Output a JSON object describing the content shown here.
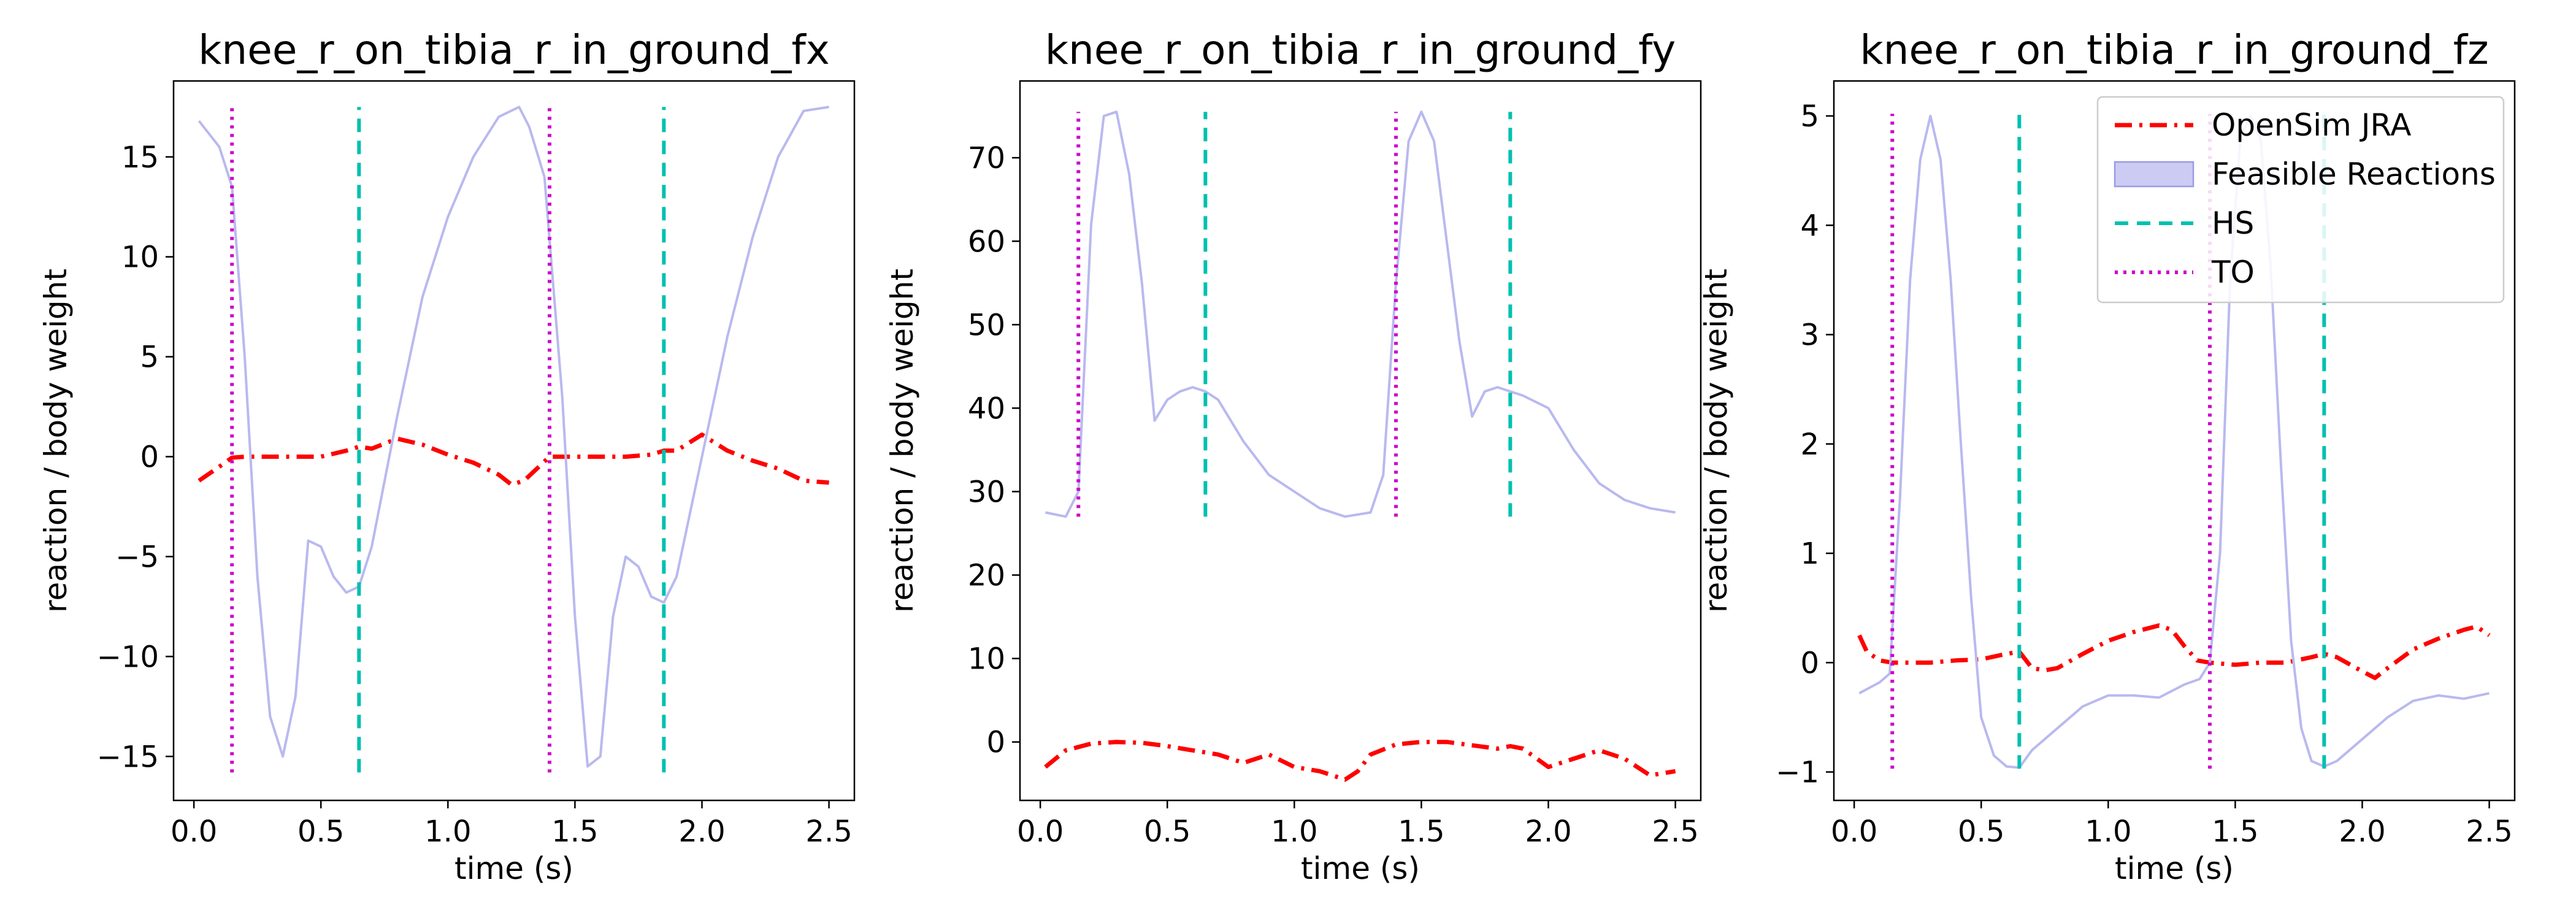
{
  "chart_data": [
    {
      "type": "line",
      "title": "knee_r_on_tibia_r_in_ground_fx",
      "xlabel": "time (s)",
      "ylabel": "reaction / body weight",
      "xlim": [
        -0.08,
        2.6
      ],
      "ylim": [
        -17.2,
        18.8
      ],
      "xticks": [
        0.0,
        0.5,
        1.0,
        1.5,
        2.0,
        2.5
      ],
      "xtick_labels": [
        "0.0",
        "0.5",
        "1.0",
        "1.5",
        "2.0",
        "2.5"
      ],
      "yticks": [
        -15,
        -10,
        -5,
        0,
        5,
        10,
        15
      ],
      "ytick_labels": [
        "−15",
        "−10",
        "−5",
        "0",
        "5",
        "10",
        "15"
      ],
      "series": [
        {
          "name": "OpenSim JRA",
          "style": "dashdot",
          "color": "#ff0000",
          "x": [
            0.02,
            0.1,
            0.15,
            0.2,
            0.3,
            0.4,
            0.5,
            0.6,
            0.65,
            0.7,
            0.8,
            0.9,
            1.0,
            1.1,
            1.2,
            1.25,
            1.3,
            1.4,
            1.5,
            1.6,
            1.7,
            1.8,
            1.85,
            1.9,
            2.0,
            2.1,
            2.2,
            2.3,
            2.4,
            2.5
          ],
          "y": [
            -1.2,
            -0.5,
            -0.05,
            0.0,
            0.0,
            0.0,
            0.0,
            0.3,
            0.5,
            0.4,
            0.9,
            0.6,
            0.1,
            -0.3,
            -0.9,
            -1.4,
            -1.2,
            0.0,
            0.0,
            0.0,
            0.0,
            0.1,
            0.3,
            0.3,
            1.1,
            0.3,
            -0.2,
            -0.6,
            -1.2,
            -1.3
          ]
        },
        {
          "name": "Feasible Reactions",
          "style": "band",
          "color": "#b9b9ef",
          "x": [
            0.02,
            0.1,
            0.15,
            0.2,
            0.25,
            0.3,
            0.35,
            0.4,
            0.45,
            0.5,
            0.55,
            0.6,
            0.65,
            0.7,
            0.8,
            0.9,
            1.0,
            1.1,
            1.2,
            1.28,
            1.32,
            1.38,
            1.45,
            1.5,
            1.55,
            1.6,
            1.65,
            1.7,
            1.75,
            1.8,
            1.85,
            1.9,
            2.0,
            2.1,
            2.2,
            2.3,
            2.4,
            2.5
          ],
          "y": [
            16.8,
            15.5,
            13.5,
            5.0,
            -6.0,
            -13.0,
            -15.0,
            -12.0,
            -4.2,
            -4.5,
            -6.0,
            -6.8,
            -6.5,
            -4.5,
            2.0,
            8.0,
            12.0,
            15.0,
            17.0,
            17.5,
            16.5,
            14.0,
            3.0,
            -8.0,
            -15.5,
            -15.0,
            -8.0,
            -5.0,
            -5.5,
            -7.0,
            -7.3,
            -6.0,
            0.0,
            6.0,
            11.0,
            15.0,
            17.3,
            17.5
          ]
        }
      ],
      "vlines": [
        {
          "name": "TO",
          "x": 0.15,
          "ymin": -15.8,
          "ymax": 17.5,
          "color": "#cc00cc",
          "style": "dotted"
        },
        {
          "name": "HS",
          "x": 0.65,
          "ymin": -15.8,
          "ymax": 17.5,
          "color": "#00c0b0",
          "style": "dashed"
        },
        {
          "name": "TO",
          "x": 1.4,
          "ymin": -15.8,
          "ymax": 17.5,
          "color": "#cc00cc",
          "style": "dotted"
        },
        {
          "name": "HS",
          "x": 1.85,
          "ymin": -15.8,
          "ymax": 17.5,
          "color": "#00c0b0",
          "style": "dashed"
        }
      ],
      "legend": null
    },
    {
      "type": "line",
      "title": "knee_r_on_tibia_r_in_ground_fy",
      "xlabel": "time (s)",
      "ylabel": "reaction / body weight",
      "xlim": [
        -0.08,
        2.6
      ],
      "ylim": [
        -7.0,
        79.2
      ],
      "xticks": [
        0.0,
        0.5,
        1.0,
        1.5,
        2.0,
        2.5
      ],
      "xtick_labels": [
        "0.0",
        "0.5",
        "1.0",
        "1.5",
        "2.0",
        "2.5"
      ],
      "yticks": [
        0,
        10,
        20,
        30,
        40,
        50,
        60,
        70
      ],
      "ytick_labels": [
        "0",
        "10",
        "20",
        "30",
        "40",
        "50",
        "60",
        "70"
      ],
      "series": [
        {
          "name": "OpenSim JRA",
          "style": "dashdot",
          "color": "#ff0000",
          "x": [
            0.02,
            0.1,
            0.2,
            0.3,
            0.4,
            0.5,
            0.6,
            0.7,
            0.8,
            0.9,
            1.0,
            1.1,
            1.2,
            1.25,
            1.3,
            1.4,
            1.5,
            1.6,
            1.7,
            1.8,
            1.85,
            1.9,
            2.0,
            2.1,
            2.2,
            2.3,
            2.4,
            2.5
          ],
          "y": [
            -3.0,
            -1.0,
            -0.2,
            0.0,
            -0.1,
            -0.5,
            -1.0,
            -1.5,
            -2.5,
            -1.5,
            -3.0,
            -3.5,
            -4.5,
            -3.5,
            -1.5,
            -0.3,
            0.0,
            0.0,
            -0.4,
            -0.8,
            -0.5,
            -0.8,
            -3.0,
            -2.0,
            -1.0,
            -2.0,
            -4.0,
            -3.5
          ]
        },
        {
          "name": "Feasible Reactions",
          "style": "band",
          "color": "#b9b9ef",
          "x": [
            0.02,
            0.1,
            0.15,
            0.2,
            0.25,
            0.3,
            0.35,
            0.4,
            0.45,
            0.5,
            0.55,
            0.6,
            0.65,
            0.7,
            0.8,
            0.9,
            1.0,
            1.1,
            1.2,
            1.3,
            1.35,
            1.4,
            1.45,
            1.5,
            1.55,
            1.6,
            1.65,
            1.7,
            1.75,
            1.8,
            1.85,
            1.9,
            2.0,
            2.1,
            2.2,
            2.3,
            2.4,
            2.5
          ],
          "y": [
            27.5,
            27.0,
            30.0,
            62.0,
            75.0,
            75.5,
            68.0,
            55.0,
            38.5,
            41.0,
            42.0,
            42.5,
            42.0,
            41.0,
            36.0,
            32.0,
            30.0,
            28.0,
            27.0,
            27.5,
            32.0,
            55.0,
            72.0,
            75.5,
            72.0,
            60.0,
            48.0,
            39.0,
            42.0,
            42.5,
            42.0,
            41.5,
            40.0,
            35.0,
            31.0,
            29.0,
            28.0,
            27.5
          ]
        }
      ],
      "vlines": [
        {
          "name": "TO",
          "x": 0.15,
          "ymin": 27.0,
          "ymax": 75.5,
          "color": "#cc00cc",
          "style": "dotted"
        },
        {
          "name": "HS",
          "x": 0.65,
          "ymin": 27.0,
          "ymax": 75.5,
          "color": "#00c0b0",
          "style": "dashed"
        },
        {
          "name": "TO",
          "x": 1.4,
          "ymin": 27.0,
          "ymax": 75.5,
          "color": "#cc00cc",
          "style": "dotted"
        },
        {
          "name": "HS",
          "x": 1.85,
          "ymin": 27.0,
          "ymax": 75.5,
          "color": "#00c0b0",
          "style": "dashed"
        }
      ],
      "legend": null
    },
    {
      "type": "line",
      "title": "knee_r_on_tibia_r_in_ground_fz",
      "xlabel": "time (s)",
      "ylabel": "reaction / body weight",
      "xlim": [
        -0.08,
        2.6
      ],
      "ylim": [
        -1.26,
        5.32
      ],
      "xticks": [
        0.0,
        0.5,
        1.0,
        1.5,
        2.0,
        2.5
      ],
      "xtick_labels": [
        "0.0",
        "0.5",
        "1.0",
        "1.5",
        "2.0",
        "2.5"
      ],
      "yticks": [
        -1,
        0,
        1,
        2,
        3,
        4,
        5
      ],
      "ytick_labels": [
        "−1",
        "0",
        "1",
        "2",
        "3",
        "4",
        "5"
      ],
      "series": [
        {
          "name": "OpenSim JRA",
          "style": "dashdot",
          "color": "#ff0000",
          "x": [
            0.02,
            0.05,
            0.1,
            0.15,
            0.2,
            0.3,
            0.4,
            0.5,
            0.6,
            0.65,
            0.7,
            0.75,
            0.8,
            0.9,
            1.0,
            1.1,
            1.2,
            1.25,
            1.3,
            1.35,
            1.4,
            1.5,
            1.6,
            1.7,
            1.8,
            1.85,
            1.9,
            2.0,
            2.05,
            2.1,
            2.2,
            2.3,
            2.4,
            2.45,
            2.5
          ],
          "y": [
            0.25,
            0.1,
            0.02,
            0.0,
            0.0,
            0.0,
            0.02,
            0.03,
            0.08,
            0.1,
            -0.05,
            -0.07,
            -0.05,
            0.08,
            0.2,
            0.28,
            0.34,
            0.3,
            0.15,
            0.02,
            0.0,
            -0.02,
            0.0,
            0.0,
            0.05,
            0.08,
            0.05,
            -0.08,
            -0.14,
            -0.05,
            0.12,
            0.22,
            0.3,
            0.33,
            0.25
          ]
        },
        {
          "name": "Feasible Reactions",
          "style": "band",
          "color": "#b9b9ef",
          "x": [
            0.02,
            0.1,
            0.14,
            0.18,
            0.22,
            0.26,
            0.3,
            0.34,
            0.38,
            0.42,
            0.46,
            0.5,
            0.55,
            0.6,
            0.65,
            0.7,
            0.8,
            0.9,
            1.0,
            1.1,
            1.2,
            1.3,
            1.36,
            1.4,
            1.44,
            1.48,
            1.52,
            1.56,
            1.6,
            1.64,
            1.68,
            1.72,
            1.76,
            1.8,
            1.85,
            1.9,
            2.0,
            2.1,
            2.2,
            2.3,
            2.4,
            2.5
          ],
          "y": [
            -0.28,
            -0.18,
            -0.1,
            1.5,
            3.5,
            4.6,
            5.0,
            4.6,
            3.5,
            2.0,
            0.6,
            -0.5,
            -0.85,
            -0.95,
            -0.96,
            -0.8,
            -0.6,
            -0.4,
            -0.3,
            -0.3,
            -0.32,
            -0.2,
            -0.15,
            0.0,
            1.0,
            3.5,
            4.8,
            5.0,
            4.8,
            3.6,
            1.8,
            0.2,
            -0.6,
            -0.9,
            -0.95,
            -0.9,
            -0.7,
            -0.5,
            -0.35,
            -0.3,
            -0.33,
            -0.28
          ]
        }
      ],
      "vlines": [
        {
          "name": "TO",
          "x": 0.15,
          "ymin": -0.97,
          "ymax": 5.02,
          "color": "#cc00cc",
          "style": "dotted"
        },
        {
          "name": "HS",
          "x": 0.65,
          "ymin": -0.97,
          "ymax": 5.02,
          "color": "#00c0b0",
          "style": "dashed"
        },
        {
          "name": "TO",
          "x": 1.4,
          "ymin": -0.97,
          "ymax": 5.02,
          "color": "#cc00cc",
          "style": "dotted"
        },
        {
          "name": "HS",
          "x": 1.85,
          "ymin": -0.97,
          "ymax": 5.02,
          "color": "#00c0b0",
          "style": "dashed"
        }
      ],
      "legend": {
        "placement": "top-right",
        "entries": [
          {
            "label": "OpenSim JRA",
            "kind": "dashdot",
            "color": "#ff0000"
          },
          {
            "label": "Feasible Reactions",
            "kind": "patch",
            "color": "#b9b9ef"
          },
          {
            "label": "HS",
            "kind": "dashed",
            "color": "#00c0b0"
          },
          {
            "label": "TO",
            "kind": "dotted",
            "color": "#cc00cc"
          }
        ]
      }
    }
  ]
}
